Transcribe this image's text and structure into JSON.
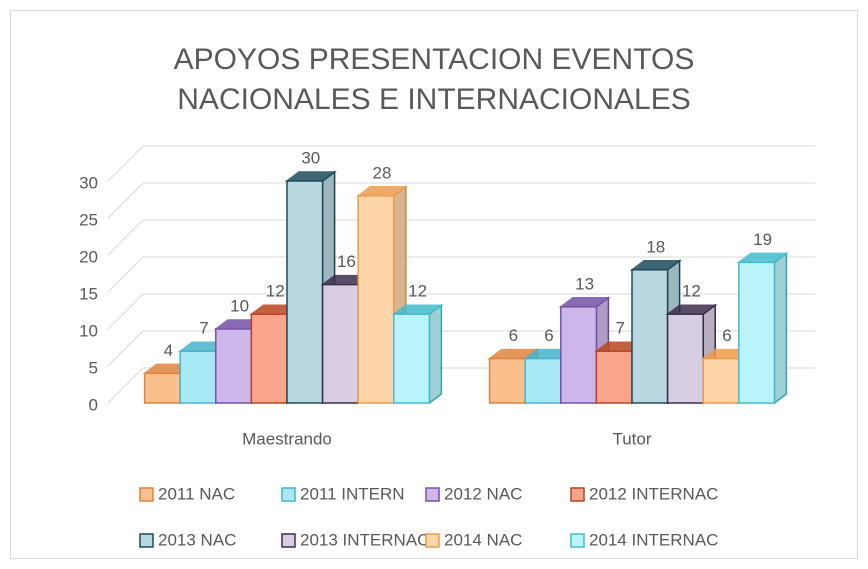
{
  "chart_data": {
    "type": "bar3d",
    "title": "APOYOS PRESENTACION EVENTOS NACIONALES E INTERNACIONALES",
    "categories": [
      "Maestrando",
      "Tutor"
    ],
    "ylim": [
      0,
      30
    ],
    "yticks": [
      0,
      5,
      10,
      15,
      20,
      25,
      30
    ],
    "grid": true,
    "legend": "bottom",
    "series": [
      {
        "name": "2011 NAC",
        "color": "#f9c08e",
        "border": "#e0843f",
        "values": [
          4,
          6
        ]
      },
      {
        "name": "2011 INTERN",
        "color": "#a9e9f5",
        "border": "#47b3cc",
        "values": [
          7,
          6
        ]
      },
      {
        "name": "2012 NAC",
        "color": "#cdb7ea",
        "border": "#7652a6",
        "values": [
          10,
          13
        ]
      },
      {
        "name": "2012 INTERNAC",
        "color": "#f9a48c",
        "border": "#b9461f",
        "values": [
          12,
          7
        ]
      },
      {
        "name": "2013 NAC",
        "color": "#b8d7df",
        "border": "#1d4b5c",
        "values": [
          30,
          18
        ]
      },
      {
        "name": "2013 INTERNAC",
        "color": "#d8cee4",
        "border": "#3b2d4d",
        "values": [
          16,
          12
        ]
      },
      {
        "name": "2014 NAC",
        "color": "#fdd5a8",
        "border": "#ee9c4a",
        "values": [
          28,
          6
        ]
      },
      {
        "name": "2014 INTERNAC",
        "color": "#b9f4fb",
        "border": "#45bccd",
        "values": [
          12,
          19
        ]
      }
    ]
  }
}
